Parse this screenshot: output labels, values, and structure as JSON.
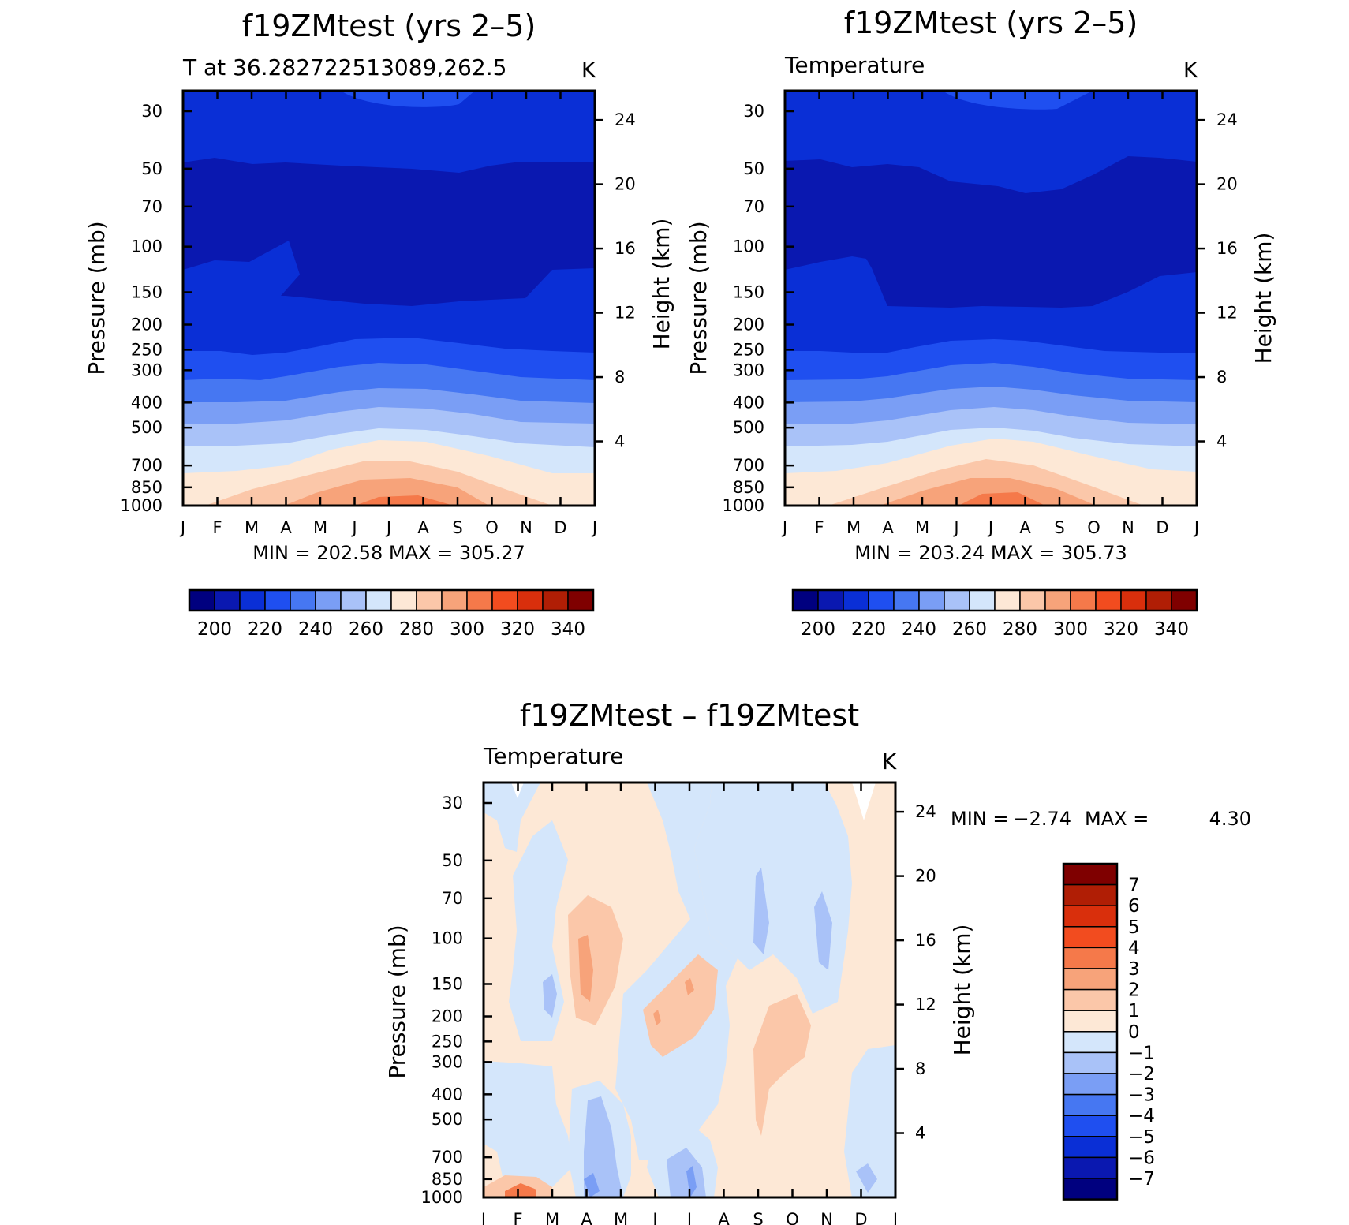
{
  "chart_data": [
    {
      "type": "heatmap",
      "panel": "top-left",
      "title": "f19ZMtest (yrs 2–5)",
      "subtitle_left": "T at 36.282722513089,262.5",
      "subtitle_right": "K",
      "ylabel": "Pressure (mb)",
      "ylabel_right": "Height (km)",
      "months": [
        "J",
        "F",
        "M",
        "A",
        "M",
        "J",
        "J",
        "A",
        "S",
        "O",
        "N",
        "D",
        "J"
      ],
      "pressure_ticks": [
        "30",
        "50",
        "70",
        "100",
        "150",
        "200",
        "250",
        "300",
        "400",
        "500",
        "700",
        "850",
        "1000"
      ],
      "height_ticks": [
        "24",
        "20",
        "16",
        "12",
        "8",
        "4"
      ],
      "stats": "MIN = 202.58 MAX = 305.27",
      "colorbar_labels": [
        "200",
        "220",
        "240",
        "260",
        "280",
        "300",
        "320",
        "340"
      ]
    },
    {
      "type": "heatmap",
      "panel": "top-right",
      "title": "f19ZMtest (yrs 2–5)",
      "subtitle_left": "Temperature",
      "subtitle_right": "K",
      "ylabel": "Pressure (mb)",
      "ylabel_right": "Height (km)",
      "months": [
        "J",
        "F",
        "M",
        "A",
        "M",
        "J",
        "J",
        "A",
        "S",
        "O",
        "N",
        "D",
        "J"
      ],
      "pressure_ticks": [
        "30",
        "50",
        "70",
        "100",
        "150",
        "200",
        "250",
        "300",
        "400",
        "500",
        "700",
        "850",
        "1000"
      ],
      "height_ticks": [
        "24",
        "20",
        "16",
        "12",
        "8",
        "4"
      ],
      "stats": "MIN = 203.24 MAX = 305.73",
      "colorbar_labels": [
        "200",
        "220",
        "240",
        "260",
        "280",
        "300",
        "320",
        "340"
      ]
    },
    {
      "type": "heatmap",
      "panel": "bottom",
      "title": "f19ZMtest – f19ZMtest",
      "subtitle_left": "Temperature",
      "subtitle_right": "K",
      "ylabel": "Pressure (mb)",
      "ylabel_right": "Height (km)",
      "months": [
        "J",
        "F",
        "M",
        "A",
        "M",
        "J",
        "J",
        "A",
        "S",
        "O",
        "N",
        "D",
        "J"
      ],
      "pressure_ticks": [
        "30",
        "50",
        "70",
        "100",
        "150",
        "200",
        "250",
        "300",
        "400",
        "500",
        "700",
        "850",
        "1000"
      ],
      "height_ticks": [
        "24",
        "20",
        "16",
        "12",
        "8",
        "4"
      ],
      "stats_min_label": "MIN =",
      "stats_min": "−2.74",
      "stats_max_label": "MAX =",
      "stats_max": "4.30",
      "colorbar_labels": [
        "7",
        "6",
        "5",
        "4",
        "3",
        "2",
        "1",
        "0",
        "−1",
        "−2",
        "−3",
        "−4",
        "−5",
        "−6",
        "−7"
      ]
    }
  ],
  "colors": {
    "abs_scale": [
      "#00007f",
      "#0a18b0",
      "#0a2fd6",
      "#1f4ff0",
      "#4677f2",
      "#7a9ef5",
      "#a9c2f8",
      "#d4e6fb",
      "#fde8d6",
      "#fbc7a9",
      "#f7a37a",
      "#f5794a",
      "#f24c1f",
      "#d92f0c",
      "#b01e05",
      "#7f0000"
    ],
    "diff_scale": [
      "#7f0000",
      "#b01e05",
      "#d92f0c",
      "#f24c1f",
      "#f5794a",
      "#f7a37a",
      "#fbc7a9",
      "#fde8d6",
      "#d4e6fb",
      "#a9c2f8",
      "#7a9ef5",
      "#4677f2",
      "#1f4ff0",
      "#0a2fd6",
      "#0a18b0",
      "#00007f"
    ]
  }
}
